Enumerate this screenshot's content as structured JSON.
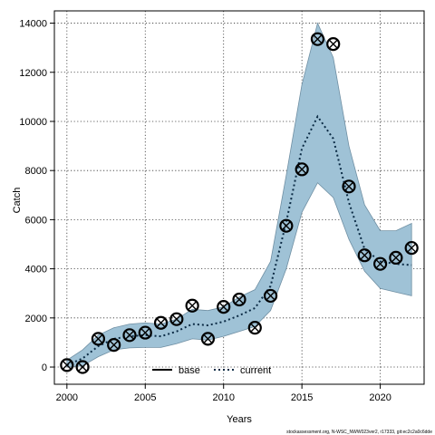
{
  "chart_data": {
    "type": "line",
    "xlabel": "Years",
    "ylabel": "Catch",
    "xlim": [
      1999.2,
      2022.8
    ],
    "ylim": [
      -700,
      14500
    ],
    "xticks": [
      2000,
      2005,
      2010,
      2015,
      2020
    ],
    "yticks": [
      0,
      2000,
      4000,
      6000,
      8000,
      10000,
      12000,
      14000
    ],
    "grid": true,
    "legend": {
      "position": "bottom-center",
      "entries": [
        {
          "name": "base",
          "style": "solid"
        },
        {
          "name": "current",
          "style": "dotted"
        }
      ]
    },
    "band": {
      "color": "#9fc2d6",
      "x": [
        2000,
        2001,
        2002,
        2003,
        2004,
        2005,
        2006,
        2007,
        2008,
        2009,
        2010,
        2011,
        2012,
        2013,
        2014,
        2015,
        2016,
        2017,
        2018,
        2019,
        2020,
        2021,
        2022
      ],
      "lower": [
        0,
        50,
        420,
        700,
        780,
        800,
        800,
        950,
        1150,
        1100,
        1250,
        1450,
        1650,
        2300,
        4000,
        6300,
        7500,
        6900,
        5200,
        3900,
        3200,
        3050,
        2900
      ],
      "upper": [
        280,
        700,
        1300,
        1600,
        1750,
        1800,
        1750,
        1950,
        2350,
        2300,
        2450,
        2850,
        3150,
        4300,
        7800,
        11500,
        14000,
        12600,
        9000,
        6600,
        5550,
        5550,
        5850
      ]
    },
    "series": [
      {
        "name": "current",
        "style": "dotted",
        "color": "#0a2a44",
        "x": [
          2000,
          2001,
          2002,
          2003,
          2004,
          2005,
          2006,
          2007,
          2008,
          2009,
          2010,
          2011,
          2012,
          2013,
          2014,
          2015,
          2016,
          2017,
          2018,
          2019,
          2020,
          2021,
          2022
        ],
        "values": [
          80,
          350,
          850,
          1150,
          1250,
          1300,
          1250,
          1450,
          1750,
          1700,
          1850,
          2100,
          2400,
          3300,
          5900,
          8900,
          10200,
          9300,
          6700,
          4800,
          4300,
          4200,
          4150
        ]
      }
    ],
    "points": {
      "name": "observed",
      "marker": "circle",
      "x": [
        2000,
        2001,
        2002,
        2003,
        2004,
        2005,
        2006,
        2007,
        2008,
        2009,
        2010,
        2011,
        2012,
        2013,
        2014,
        2015,
        2016,
        2017,
        2018,
        2019,
        2020,
        2021,
        2022
      ],
      "values": [
        80,
        0,
        1150,
        900,
        1300,
        1400,
        1800,
        1950,
        2500,
        1150,
        2450,
        2750,
        1600,
        2900,
        5750,
        8050,
        13350,
        13150,
        7350,
        4550,
        4200,
        4450,
        4850
      ]
    },
    "cross_markers": {
      "x": [
        2000,
        2001,
        2002,
        2003,
        2004,
        2005,
        2006,
        2007,
        2008,
        2009,
        2010,
        2011,
        2012,
        2013,
        2014,
        2015,
        2016,
        2017,
        2018,
        2019,
        2020,
        2021,
        2022
      ],
      "values": [
        80,
        0,
        1150,
        900,
        1300,
        1400,
        1800,
        1950,
        2500,
        1150,
        2450,
        2750,
        1600,
        2900,
        5750,
        8050,
        13350,
        13150,
        7350,
        4550,
        4200,
        4450,
        4850
      ]
    },
    "footer": "stockassessment.org, N-WSC_NWW023ver2, r17333, git:ec2c2a0c6dde"
  }
}
